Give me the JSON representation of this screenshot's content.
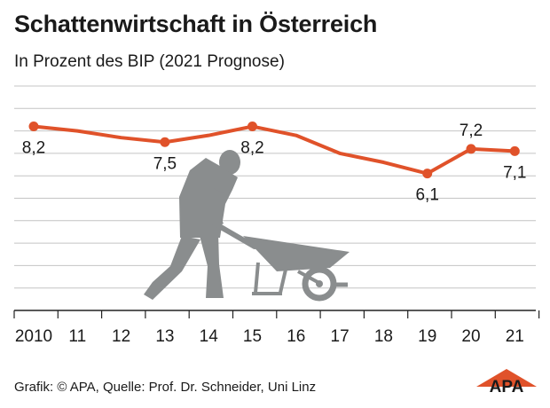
{
  "header": {
    "title": "Schattenwirtschaft in Österreich",
    "subtitle": "In Prozent des BIP (2021 Prognose)"
  },
  "footer": {
    "source": "Grafik: © APA, Quelle: Prof. Dr. Schneider, Uni Linz",
    "logo_text": "APA"
  },
  "colors": {
    "series": "#e0522a",
    "grid": "#c4c4c4",
    "axis": "#222222",
    "illustration": "#8a8d8e",
    "logo": "#e0522a"
  },
  "chart_data": {
    "type": "line",
    "x": [
      "2010",
      "11",
      "12",
      "13",
      "14",
      "15",
      "16",
      "17",
      "18",
      "19",
      "20",
      "21"
    ],
    "series": [
      {
        "values": [
          8.2,
          8.0,
          7.7,
          7.5,
          7.8,
          8.2,
          7.8,
          7.0,
          6.6,
          6.1,
          7.2,
          7.1
        ],
        "labels": [
          "8,2",
          "",
          "",
          "7,5",
          "",
          "8,2",
          "",
          "",
          "",
          "6,1",
          "7,2",
          "7,1"
        ],
        "markers": [
          true,
          false,
          false,
          true,
          false,
          true,
          false,
          false,
          false,
          true,
          true,
          true
        ]
      }
    ],
    "ylim": [
      0,
      10
    ],
    "grid": true,
    "legend": "none",
    "y_tick_labels": false
  },
  "illustration": {
    "icon": "person-pushing-wheelbarrow-icon"
  }
}
